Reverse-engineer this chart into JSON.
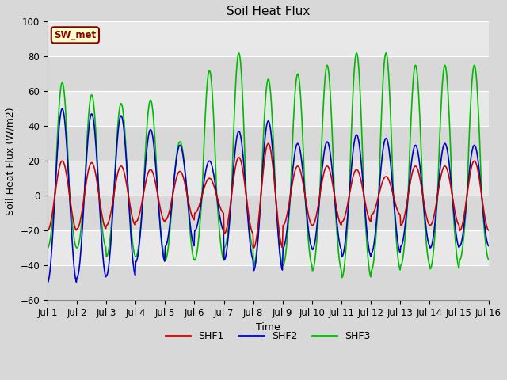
{
  "title": "Soil Heat Flux",
  "ylabel": "Soil Heat Flux (W/m2)",
  "xlabel": "Time",
  "ylim": [
    -60,
    100
  ],
  "fig_bg_color": "#d8d8d8",
  "plot_bg_color": "#e0e0e0",
  "grid_color": "#ffffff",
  "band_colors": [
    "#d8d8d8",
    "#e8e8e8"
  ],
  "xtick_labels": [
    "Jul 1",
    "Jul 2",
    "Jul 3",
    "Jul 4",
    "Jul 5",
    "Jul 6",
    "Jul 7",
    "Jul 8",
    "Jul 9",
    "Jul 10",
    "Jul 11",
    "Jul 12",
    "Jul 13",
    "Jul 14",
    "Jul 15",
    "Jul 16"
  ],
  "ytick_values": [
    -60,
    -40,
    -20,
    0,
    20,
    40,
    60,
    80,
    100
  ],
  "shf1_color": "#cc0000",
  "shf2_color": "#0000cc",
  "shf3_color": "#00bb00",
  "shf1_label": "SHF1",
  "shf2_label": "SHF2",
  "shf3_label": "SHF3",
  "site_label": "SW_met",
  "site_label_color": "#8B0000",
  "site_label_bg": "#ffffcc",
  "n_days": 15,
  "points_per_day": 48,
  "shf1_amps": [
    20,
    19,
    17,
    15,
    14,
    10,
    22,
    30,
    17,
    17,
    15,
    11,
    17,
    17,
    20
  ],
  "shf2_amps": [
    50,
    47,
    46,
    38,
    29,
    20,
    37,
    43,
    30,
    31,
    35,
    33,
    29,
    30,
    29
  ],
  "shf3_pos_amps": [
    65,
    58,
    53,
    55,
    31,
    72,
    82,
    67,
    70,
    75,
    82,
    82,
    75,
    75,
    75
  ],
  "shf3_neg_amps": [
    30,
    30,
    35,
    35,
    37,
    37,
    30,
    40,
    40,
    43,
    47,
    43,
    40,
    42,
    37
  ]
}
